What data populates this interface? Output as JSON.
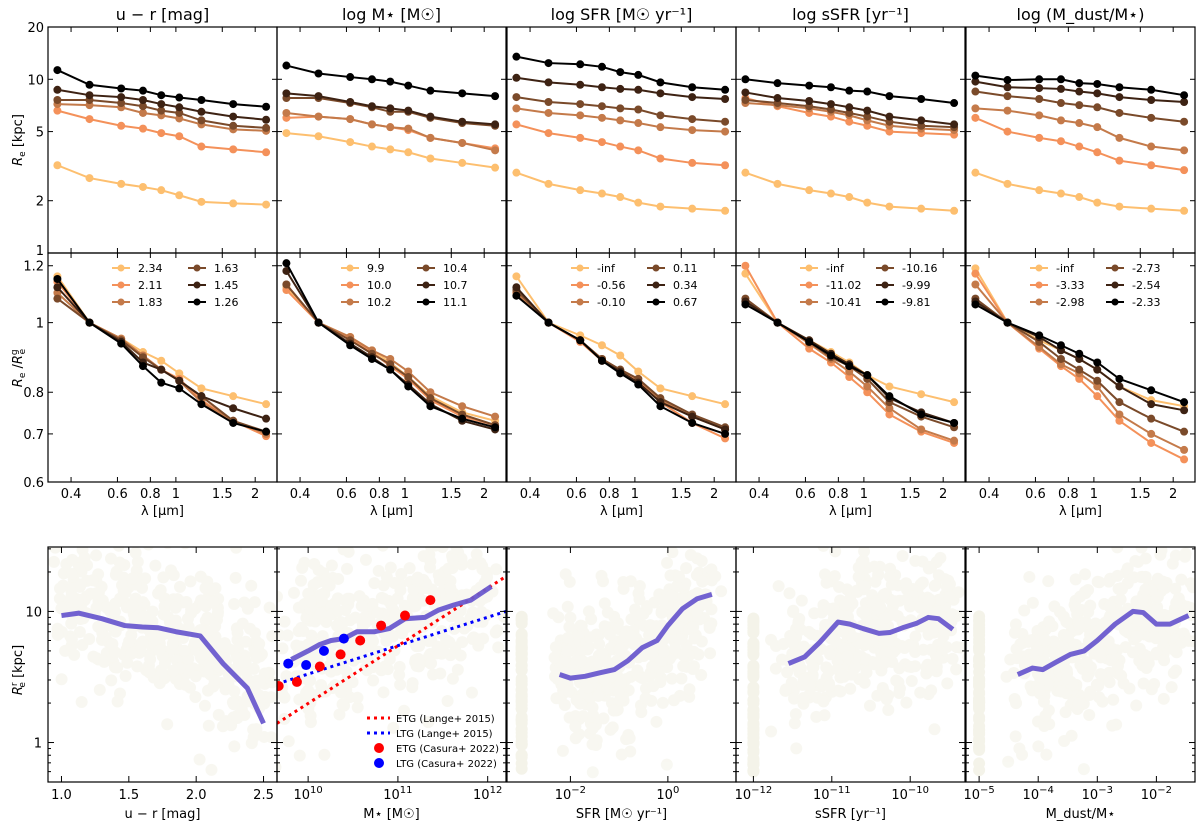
{
  "chart_data": {
    "type": "line",
    "wavelengths_um": [
      0.355,
      0.47,
      0.62,
      0.75,
      0.88,
      1.03,
      1.25,
      1.65,
      2.2
    ],
    "series_colors": [
      "#fdbf6f",
      "#f4915a",
      "#c47a4a",
      "#7a4a2a",
      "#3d2213",
      "#000000"
    ],
    "columns": [
      {
        "title": "u − r [mag]",
        "legend": [
          "2.34",
          "2.11",
          "1.83",
          "1.63",
          "1.45",
          "1.26"
        ],
        "top": [
          [
            3.2,
            2.7,
            2.5,
            2.4,
            2.3,
            2.15,
            1.97,
            1.93,
            1.9
          ],
          [
            6.6,
            5.9,
            5.4,
            5.2,
            4.9,
            4.7,
            4.1,
            3.95,
            3.8
          ],
          [
            7.2,
            7.1,
            6.9,
            6.4,
            6.2,
            5.95,
            5.5,
            5.15,
            5.05
          ],
          [
            7.6,
            7.6,
            7.3,
            7.0,
            6.6,
            6.4,
            5.8,
            5.4,
            5.25
          ],
          [
            8.7,
            8.1,
            7.9,
            7.6,
            7.2,
            6.9,
            6.5,
            6.1,
            5.85
          ],
          [
            11.3,
            9.3,
            8.85,
            8.6,
            8.1,
            7.85,
            7.6,
            7.2,
            6.95
          ]
        ],
        "ratio": [
          [
            1.16,
            1.0,
            0.95,
            0.91,
            0.885,
            0.85,
            0.81,
            0.79,
            0.77
          ],
          [
            1.14,
            1.0,
            0.945,
            0.9,
            0.86,
            0.835,
            0.78,
            0.73,
            0.695
          ],
          [
            1.1,
            1.0,
            0.95,
            0.9,
            0.86,
            0.83,
            0.775,
            0.73,
            0.7
          ],
          [
            1.08,
            1.0,
            0.945,
            0.895,
            0.86,
            0.83,
            0.79,
            0.73,
            0.705
          ],
          [
            1.12,
            1.0,
            0.94,
            0.88,
            0.86,
            0.83,
            0.79,
            0.76,
            0.735
          ],
          [
            1.15,
            1.0,
            0.935,
            0.87,
            0.825,
            0.81,
            0.77,
            0.725,
            0.705
          ]
        ]
      },
      {
        "title": "log M⋆ [M☉]",
        "legend": [
          "9.9",
          "10.0",
          "10.2",
          "10.4",
          "10.7",
          "11.1"
        ],
        "top": [
          [
            4.9,
            4.7,
            4.35,
            4.1,
            3.95,
            3.8,
            3.5,
            3.3,
            3.1
          ],
          [
            6.0,
            6.1,
            5.9,
            5.5,
            5.3,
            5.1,
            4.6,
            4.3,
            4.0
          ],
          [
            6.4,
            6.1,
            5.9,
            5.5,
            5.3,
            5.2,
            4.6,
            4.3,
            3.9
          ],
          [
            7.8,
            7.8,
            7.3,
            6.9,
            6.5,
            6.5,
            6.0,
            5.6,
            5.4
          ],
          [
            8.3,
            8.0,
            7.4,
            7.0,
            6.8,
            6.6,
            6.1,
            5.7,
            5.5
          ],
          [
            12.0,
            10.8,
            10.3,
            10.0,
            9.7,
            9.2,
            8.6,
            8.3,
            8.0
          ]
        ],
        "ratio": [
          [
            1.12,
            1.0,
            0.955,
            0.915,
            0.88,
            0.84,
            0.79,
            0.75,
            0.73
          ],
          [
            1.11,
            1.0,
            0.95,
            0.91,
            0.87,
            0.835,
            0.78,
            0.74,
            0.72
          ],
          [
            1.13,
            1.0,
            0.955,
            0.915,
            0.89,
            0.855,
            0.8,
            0.765,
            0.74
          ],
          [
            1.13,
            1.0,
            0.945,
            0.905,
            0.875,
            0.84,
            0.785,
            0.745,
            0.72
          ],
          [
            1.18,
            1.0,
            0.935,
            0.895,
            0.86,
            0.82,
            0.77,
            0.73,
            0.71
          ],
          [
            1.21,
            1.0,
            0.93,
            0.89,
            0.86,
            0.815,
            0.765,
            0.735,
            0.715
          ]
        ]
      },
      {
        "title": "log SFR [M☉ yr⁻¹]",
        "legend": [
          "-inf",
          "-0.56",
          "-0.10",
          "0.11",
          "0.34",
          "0.67"
        ],
        "top": [
          [
            2.9,
            2.5,
            2.3,
            2.2,
            2.1,
            1.95,
            1.85,
            1.8,
            1.75
          ],
          [
            5.5,
            4.9,
            4.6,
            4.35,
            4.1,
            3.9,
            3.5,
            3.3,
            3.2
          ],
          [
            6.8,
            6.4,
            6.2,
            6.0,
            5.8,
            5.6,
            5.3,
            5.1,
            5.0
          ],
          [
            7.9,
            7.4,
            7.2,
            7.0,
            6.8,
            6.7,
            6.2,
            5.9,
            5.7
          ],
          [
            10.2,
            9.6,
            9.3,
            9.0,
            8.8,
            8.7,
            8.3,
            7.9,
            7.7
          ],
          [
            13.5,
            12.4,
            12.2,
            11.8,
            11.0,
            10.6,
            9.6,
            9.0,
            8.7
          ]
        ],
        "ratio": [
          [
            1.16,
            1.0,
            0.96,
            0.93,
            0.9,
            0.855,
            0.81,
            0.79,
            0.77
          ],
          [
            1.1,
            1.0,
            0.94,
            0.885,
            0.855,
            0.83,
            0.775,
            0.725,
            0.69
          ],
          [
            1.1,
            1.0,
            0.945,
            0.89,
            0.86,
            0.835,
            0.78,
            0.74,
            0.71
          ],
          [
            1.11,
            1.0,
            0.945,
            0.89,
            0.86,
            0.835,
            0.785,
            0.745,
            0.715
          ],
          [
            1.12,
            1.0,
            0.945,
            0.885,
            0.855,
            0.825,
            0.775,
            0.74,
            0.71
          ],
          [
            1.09,
            1.0,
            0.945,
            0.885,
            0.85,
            0.82,
            0.765,
            0.725,
            0.7
          ]
        ]
      },
      {
        "title": "log sSFR [yr⁻¹]",
        "legend": [
          "-inf",
          "-11.02",
          "-10.41",
          "-10.16",
          "-9.99",
          "-9.81"
        ],
        "top": [
          [
            2.9,
            2.5,
            2.3,
            2.2,
            2.1,
            1.95,
            1.85,
            1.8,
            1.75
          ],
          [
            7.8,
            7.0,
            6.4,
            6.1,
            5.7,
            5.4,
            5.0,
            4.9,
            4.8
          ],
          [
            7.3,
            7.1,
            6.8,
            6.5,
            6.2,
            5.8,
            5.4,
            5.2,
            5.1
          ],
          [
            7.6,
            7.3,
            7.0,
            6.7,
            6.4,
            6.1,
            5.7,
            5.4,
            5.3
          ],
          [
            8.4,
            7.8,
            7.5,
            7.2,
            6.9,
            6.6,
            6.1,
            5.8,
            5.5
          ],
          [
            10.0,
            9.5,
            9.2,
            9.0,
            8.6,
            8.5,
            8.0,
            7.7,
            7.3
          ]
        ],
        "ratio": [
          [
            1.17,
            1.0,
            0.945,
            0.91,
            0.88,
            0.845,
            0.815,
            0.795,
            0.775
          ],
          [
            1.2,
            1.0,
            0.92,
            0.88,
            0.84,
            0.8,
            0.745,
            0.705,
            0.68
          ],
          [
            1.07,
            1.0,
            0.935,
            0.89,
            0.855,
            0.815,
            0.76,
            0.71,
            0.685
          ],
          [
            1.08,
            1.0,
            0.94,
            0.895,
            0.87,
            0.835,
            0.775,
            0.74,
            0.715
          ],
          [
            1.07,
            1.0,
            0.945,
            0.905,
            0.875,
            0.845,
            0.785,
            0.75,
            0.725
          ],
          [
            1.06,
            1.0,
            0.94,
            0.9,
            0.87,
            0.845,
            0.79,
            0.745,
            0.725
          ]
        ]
      },
      {
        "title": "log (M_dust/M⋆)",
        "legend": [
          "-inf",
          "-3.33",
          "-2.98",
          "-2.73",
          "-2.54",
          "-2.33"
        ],
        "top": [
          [
            2.9,
            2.5,
            2.3,
            2.2,
            2.1,
            1.95,
            1.85,
            1.8,
            1.75
          ],
          [
            6.0,
            5.0,
            4.6,
            4.4,
            4.1,
            3.8,
            3.4,
            3.2,
            3.0
          ],
          [
            6.8,
            6.6,
            6.2,
            5.8,
            5.6,
            5.3,
            4.6,
            4.1,
            3.9
          ],
          [
            8.5,
            8.0,
            7.7,
            7.3,
            7.1,
            6.9,
            6.4,
            6.0,
            5.7
          ],
          [
            9.7,
            9.0,
            8.9,
            8.8,
            8.5,
            8.3,
            7.9,
            7.6,
            7.4
          ],
          [
            10.5,
            9.9,
            10.0,
            10.0,
            9.5,
            9.4,
            9.0,
            8.7,
            8.1
          ]
        ],
        "ratio": [
          [
            1.19,
            1.0,
            0.945,
            0.915,
            0.89,
            0.86,
            0.815,
            0.78,
            0.765
          ],
          [
            1.17,
            1.0,
            0.92,
            0.87,
            0.835,
            0.79,
            0.73,
            0.68,
            0.645
          ],
          [
            1.13,
            1.0,
            0.925,
            0.875,
            0.85,
            0.815,
            0.745,
            0.7,
            0.665
          ],
          [
            1.08,
            1.0,
            0.94,
            0.89,
            0.86,
            0.83,
            0.775,
            0.735,
            0.705
          ],
          [
            1.07,
            1.0,
            0.955,
            0.915,
            0.89,
            0.86,
            0.815,
            0.77,
            0.755
          ],
          [
            1.06,
            1.0,
            0.96,
            0.93,
            0.905,
            0.88,
            0.835,
            0.805,
            0.775
          ]
        ]
      }
    ],
    "top_row": {
      "ylabel": "R_e [kpc]",
      "ylim": [
        1,
        20
      ],
      "yscale": "log",
      "yticks": [
        "1",
        "2",
        "5",
        "10",
        "20"
      ]
    },
    "middle_row": {
      "ylabel": "R_e / R_e^g",
      "ylim": [
        0.6,
        1.25
      ],
      "yscale": "log",
      "yticks": [
        "0.6",
        "0.7",
        "0.8",
        "1",
        "1.2"
      ],
      "xlabel": "λ [μm]",
      "xticks": [
        "0.4",
        "0.6",
        "0.8",
        "1",
        "1.5",
        "2"
      ],
      "xlim": [
        0.327,
        2.42
      ]
    },
    "bottom_row": {
      "ylabel": "R_e^r [kpc]",
      "ylim": [
        0.5,
        31
      ],
      "yticks": [
        "1",
        "10"
      ],
      "scatter_color": "#b5b06a",
      "median_color": "#6a5acd",
      "panels": [
        {
          "xlabel": "u − r [mag]",
          "xscale": "linear",
          "xlim": [
            0.9,
            2.6
          ],
          "xticks": [
            "1.0",
            "1.5",
            "2.0",
            "2.5"
          ],
          "median_x": [
            1.0,
            1.13,
            1.3,
            1.47,
            1.6,
            1.72,
            1.85,
            2.03,
            2.2,
            2.38,
            2.5
          ],
          "median_y": [
            9.3,
            9.7,
            8.8,
            7.8,
            7.6,
            7.5,
            7.0,
            6.5,
            4.0,
            2.6,
            1.4
          ]
        },
        {
          "xlabel": "M⋆ [M☉]",
          "xscale": "log",
          "xlim": [
            4500000000.0,
            1600000000000.0
          ],
          "xticks": [
            "10^10",
            "10^11",
            "10^12"
          ],
          "median_x": [
            6500000000.0,
            10000000000.0,
            13500000000.0,
            18000000000.0,
            25000000000.0,
            35000000000.0,
            55000000000.0,
            80000000000.0,
            120000000000.0,
            200000000000.0,
            280000000000.0,
            420000000000.0,
            650000000000.0,
            1100000000000.0
          ],
          "median_y": [
            4.3,
            5.0,
            5.6,
            6.0,
            6.2,
            7.0,
            7.0,
            7.4,
            8.8,
            9.0,
            10.2,
            11.2,
            12.2,
            15.5
          ],
          "etg_lange": {
            "label": "ETG (Lange+ 2015)",
            "color": "#ff0000",
            "x": [
              4500000000.0,
              1600000000000.0
            ],
            "y": [
              1.4,
              18.5
            ]
          },
          "ltg_lange": {
            "label": "LTG (Lange+ 2015)",
            "color": "#0000ff",
            "x": [
              4500000000.0,
              1600000000000.0
            ],
            "y": [
              2.8,
              10.0
            ]
          },
          "etg_casura": {
            "label": "ETG (Casura+ 2022)",
            "color": "#ff0000",
            "x": [
              4700000000.0,
              7500000000.0,
              13500000000.0,
              23000000000.0,
              38000000000.0,
              65000000000.0,
              120000000000.0,
              230000000000.0
            ],
            "y": [
              2.7,
              2.9,
              3.8,
              4.7,
              6.0,
              7.8,
              9.3,
              12.2
            ]
          },
          "ltg_casura": {
            "label": "LTG (Casura+ 2022)",
            "color": "#0000ff",
            "x": [
              6000000000.0,
              9500000000.0,
              15000000000.0,
              25000000000.0
            ],
            "y": [
              4.0,
              3.9,
              5.0,
              6.2
            ]
          }
        },
        {
          "xlabel": "SFR [M☉ yr⁻¹]",
          "xscale": "log",
          "xlim": [
            0.0005,
            25
          ],
          "xticks": [
            "10^-2",
            "10^0"
          ],
          "median_x": [
            0.006,
            0.01,
            0.02,
            0.04,
            0.08,
            0.15,
            0.3,
            0.6,
            1.0,
            2.0,
            4.0,
            8.0
          ],
          "median_y": [
            3.3,
            3.1,
            3.2,
            3.4,
            3.6,
            4.2,
            5.3,
            6.0,
            7.8,
            10.5,
            12.5,
            13.5
          ]
        },
        {
          "xlabel": "sSFR [yr⁻¹]",
          "xscale": "log",
          "xlim": [
            6e-13,
            5e-10
          ],
          "xticks": [
            "10^-12",
            "10^-11",
            "10^-10"
          ],
          "median_x": [
            2.8e-12,
            4.5e-12,
            7e-12,
            1.2e-11,
            1.7e-11,
            2.5e-11,
            4e-11,
            5.5e-11,
            8e-11,
            1.2e-10,
            1.7e-10,
            2.3e-10,
            3.5e-10
          ],
          "median_y": [
            4.0,
            4.5,
            5.8,
            8.3,
            8.0,
            7.4,
            6.8,
            6.9,
            7.5,
            8.1,
            9.0,
            8.8,
            7.3
          ]
        },
        {
          "xlabel": "M_dust/M⋆",
          "xscale": "log",
          "xlim": [
            6e-06,
            0.045
          ],
          "xticks": [
            "10^-5",
            "10^-4",
            "10^-3",
            "10^-2"
          ],
          "median_x": [
            4.5e-05,
            8e-05,
            0.00012,
            0.0002,
            0.00035,
            0.0006,
            0.001,
            0.002,
            0.004,
            0.006,
            0.01,
            0.017,
            0.035
          ],
          "median_y": [
            3.3,
            3.7,
            3.6,
            4.1,
            4.7,
            5.0,
            6.0,
            8.0,
            10.0,
            9.8,
            8.0,
            8.0,
            9.3
          ]
        }
      ],
      "zero_column": {
        "sfr_x": 0.001,
        "ssfr_x": 1e-12,
        "dust_x": 1e-05,
        "y_range": [
          0.6,
          9.5
        ]
      }
    }
  }
}
